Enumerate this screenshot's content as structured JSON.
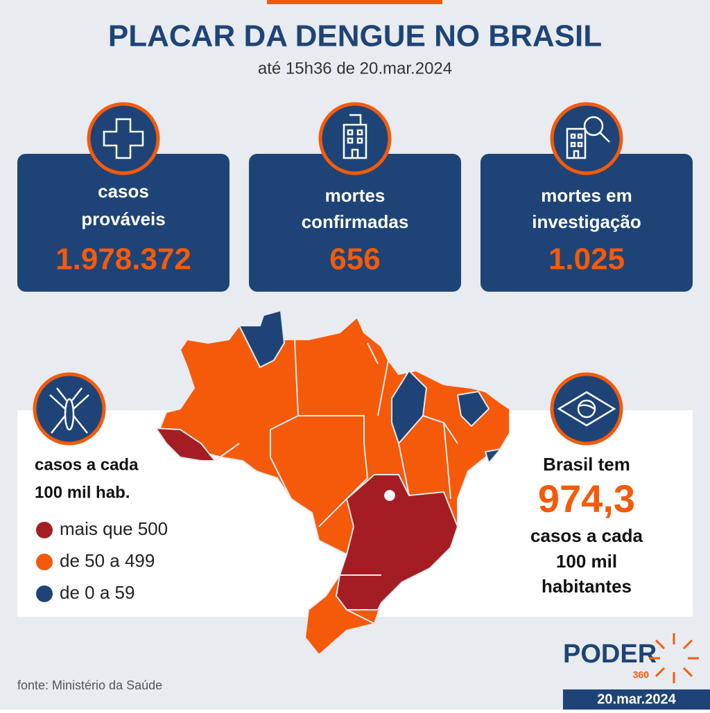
{
  "header": {
    "title": "PLACAR DA DENGUE NO BRASIL",
    "subtitle": "até 15h36 de 20.mar.2024"
  },
  "cards": [
    {
      "label_lines": [
        "casos",
        "prováveis"
      ],
      "value": "1.978.372"
    },
    {
      "label_lines": [
        "mortes",
        "confirmadas"
      ],
      "value": "656"
    },
    {
      "label_lines": [
        "mortes em",
        "investigação"
      ],
      "value": "1.025"
    }
  ],
  "legend": {
    "title_lines": [
      "casos a cada",
      "100 mil hab."
    ],
    "items": [
      {
        "label": "mais que 500",
        "color": "#a51d24"
      },
      {
        "label": "de 50 a 499",
        "color": "#f55a0a"
      },
      {
        "label": "de 0 a 59",
        "color": "#1e4477"
      }
    ]
  },
  "callout": {
    "intro": "Brasil tem",
    "value": "974,3",
    "lines": [
      "casos a cada",
      "100 mil",
      "habitantes"
    ]
  },
  "footer": {
    "source": "fonte: Ministério da Saúde",
    "logo": "PODER",
    "logo_sub": "360",
    "date": "20.mar.2024"
  }
}
